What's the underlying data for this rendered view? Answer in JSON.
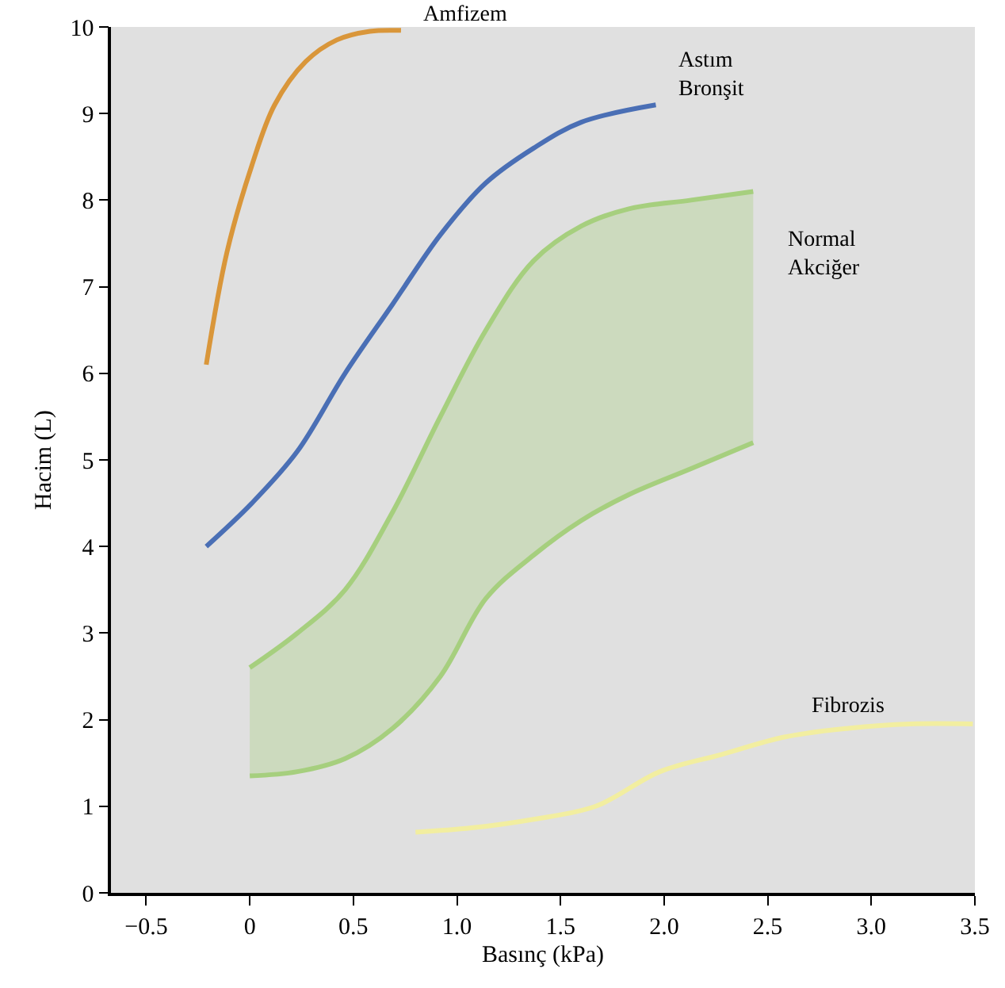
{
  "chart_data": {
    "type": "line",
    "xlabel": "Basınç (kPa)",
    "ylabel": "Hacim (L)",
    "xlim": [
      -0.67,
      3.5
    ],
    "ylim": [
      0,
      10
    ],
    "xticks": [
      {
        "value": -0.5,
        "label": "−0.5"
      },
      0,
      0.5,
      {
        "value": 1,
        "label": "1.0"
      },
      1.5,
      {
        "value": 2,
        "label": "2.0"
      },
      2.5,
      {
        "value": 3,
        "label": "3.0"
      },
      3.5
    ],
    "yticks": [
      0,
      1,
      2,
      3,
      4,
      5,
      6,
      7,
      8,
      9,
      10
    ],
    "grid": false,
    "legend": false,
    "marker": "none",
    "line_style": "solid",
    "series": [
      {
        "name": "Amfizem",
        "color": "#d9963a",
        "x": [
          -0.21,
          -0.11,
          0.01,
          0.12,
          0.27,
          0.42,
          0.58,
          0.73
        ],
        "values": [
          6.1,
          7.4,
          8.4,
          9.1,
          9.6,
          9.85,
          9.95,
          9.96
        ]
      },
      {
        "name": "Astım\nBronşit",
        "color": "#4a6fb5",
        "x": [
          -0.21,
          0.01,
          0.23,
          0.46,
          0.69,
          0.92,
          1.14,
          1.37,
          1.6,
          1.96
        ],
        "values": [
          4.0,
          4.5,
          5.1,
          6.0,
          6.8,
          7.6,
          8.2,
          8.6,
          8.9,
          9.1
        ]
      },
      {
        "color": "#a6cf7e",
        "x": [
          0,
          0.23,
          0.46,
          0.69,
          0.92,
          1.14,
          1.37,
          1.6,
          1.83,
          2.13,
          2.43
        ],
        "values": [
          1.35,
          1.4,
          1.55,
          1.9,
          2.5,
          3.4,
          3.9,
          4.3,
          4.6,
          4.9,
          5.2
        ]
      },
      {
        "name": "Normal\nAkciğer",
        "type": "area",
        "color": "#a6cf7e",
        "x": [
          0,
          0.23,
          0.46,
          0.69,
          0.92,
          1.14,
          1.37,
          1.6,
          1.83,
          2.13,
          2.43
        ],
        "values": [
          2.6,
          3.0,
          3.5,
          4.4,
          5.5,
          6.5,
          7.3,
          7.7,
          7.9,
          8.0,
          8.1
        ]
      },
      {
        "name": "Fibrozis",
        "color": "#f2eea0",
        "x": [
          0.8,
          1.07,
          1.37,
          1.67,
          1.98,
          2.28,
          2.58,
          2.89,
          3.19,
          3.49
        ],
        "values": [
          0.7,
          0.75,
          0.85,
          1.0,
          1.4,
          1.6,
          1.8,
          1.9,
          1.95,
          1.95
        ]
      }
    ]
  }
}
